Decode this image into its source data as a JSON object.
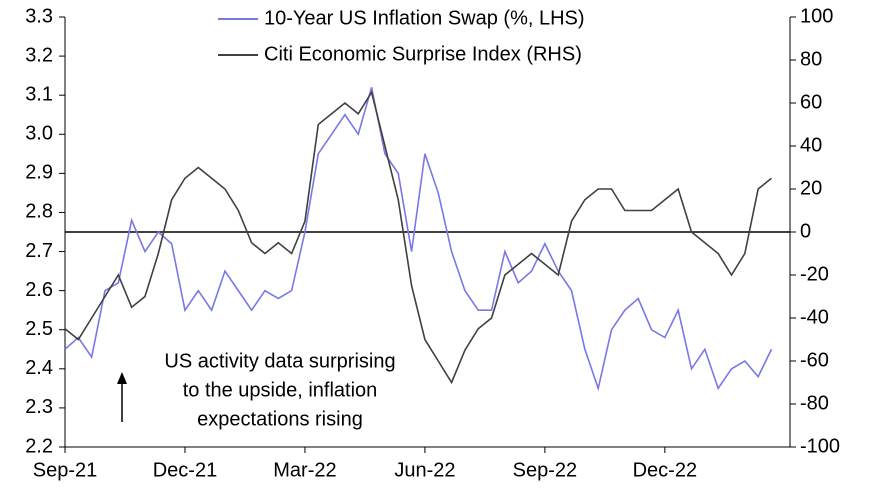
{
  "chart_data": {
    "type": "line",
    "categories": [
      "Sep-21",
      null,
      null,
      null,
      null,
      null,
      null,
      null,
      null,
      "Dec-21",
      null,
      null,
      null,
      null,
      null,
      null,
      null,
      null,
      "Mar-22",
      null,
      null,
      null,
      null,
      null,
      null,
      null,
      null,
      "Jun-22",
      null,
      null,
      null,
      null,
      null,
      null,
      null,
      null,
      "Sep-22",
      null,
      null,
      null,
      null,
      null,
      null,
      null,
      null,
      "Dec-22",
      null,
      null,
      null,
      null,
      null,
      null,
      null,
      null
    ],
    "series": [
      {
        "name": "10-Year US Inflation Swap (%, LHS)",
        "color": "#7878e8",
        "axis": "y",
        "values": [
          2.45,
          2.48,
          2.43,
          2.6,
          2.62,
          2.78,
          2.7,
          2.75,
          2.72,
          2.55,
          2.6,
          2.55,
          2.65,
          2.6,
          2.55,
          2.6,
          2.58,
          2.6,
          2.75,
          2.95,
          3.0,
          3.05,
          3.0,
          3.12,
          2.95,
          2.9,
          2.7,
          2.95,
          2.85,
          2.7,
          2.6,
          2.55,
          2.55,
          2.7,
          2.62,
          2.65,
          2.72,
          2.65,
          2.6,
          2.45,
          2.35,
          2.5,
          2.55,
          2.58,
          2.5,
          2.48,
          2.55,
          2.4,
          2.45,
          2.35,
          2.4,
          2.42,
          2.38,
          2.45
        ]
      },
      {
        "name": "Citi Economic Surprise Index (RHS)",
        "color": "#404040",
        "axis": "y2",
        "values": [
          -45,
          -50,
          -40,
          -30,
          -20,
          -35,
          -30,
          -10,
          15,
          25,
          30,
          25,
          20,
          10,
          -5,
          -10,
          -5,
          -10,
          5,
          50,
          55,
          60,
          55,
          65,
          40,
          15,
          -25,
          -50,
          -60,
          -70,
          -55,
          -45,
          -40,
          -20,
          -15,
          -10,
          -15,
          -20,
          5,
          15,
          20,
          20,
          10,
          10,
          10,
          15,
          20,
          0,
          -5,
          -10,
          -20,
          -10,
          20,
          25
        ]
      }
    ],
    "ylim": [
      2.2,
      3.3
    ],
    "yticks": [
      2.2,
      2.3,
      2.4,
      2.5,
      2.6,
      2.7,
      2.8,
      2.9,
      {
        "value": 3,
        "label": "3.0"
      },
      3.1,
      3.2,
      3.3
    ],
    "y2lim": [
      -100,
      100
    ],
    "y2ticks": [
      -100,
      -80,
      -60,
      -40,
      -20,
      0,
      20,
      40,
      60,
      80,
      100
    ],
    "hline_y2": 0,
    "annotation": [
      "US activity data surprising",
      "to the upside, inflation",
      "expectations rising"
    ]
  }
}
